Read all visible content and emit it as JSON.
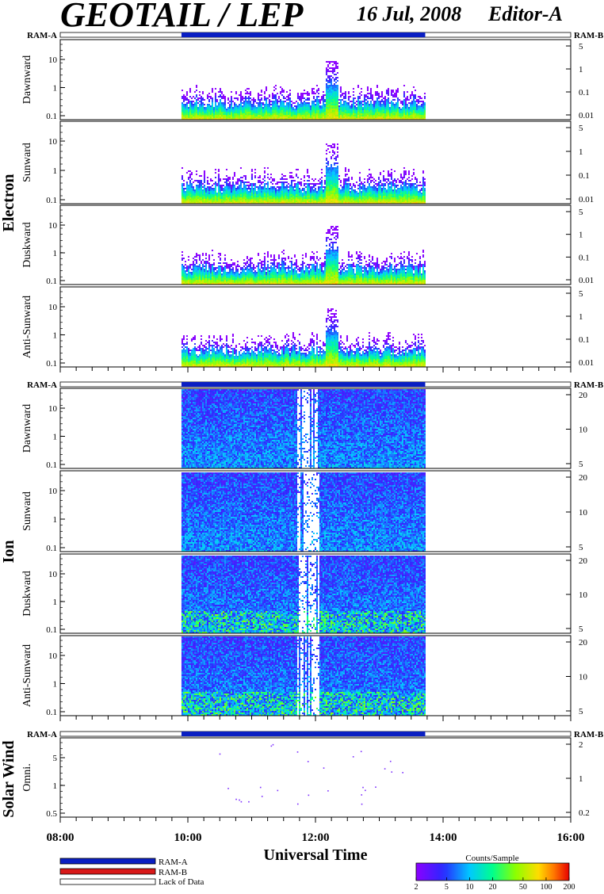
{
  "header": {
    "title": "GEOTAIL / LEP",
    "date": "16 Jul, 2008",
    "editor": "Editor-A"
  },
  "ram_labels": {
    "left": "RAM-A",
    "right": "RAM-B"
  },
  "groups": [
    {
      "name": "Electron"
    },
    {
      "name": "Ion"
    },
    {
      "name": "Solar Wind"
    }
  ],
  "legend": {
    "items": [
      {
        "label": "RAM-A",
        "color": "#0a1fc2"
      },
      {
        "label": "RAM-B",
        "color": "#d81818"
      },
      {
        "label": "Lack of Data",
        "color": "#ffffff"
      }
    ]
  },
  "colorbar": {
    "title": "Counts/Sample",
    "ticks": [
      "2",
      "5",
      "10",
      "20",
      "50",
      "100",
      "200"
    ],
    "min": 2,
    "max": 200,
    "scale": "log"
  },
  "chart_data": {
    "type": "heatmap",
    "xlabel": "Universal Time",
    "x_ticks": [
      "08:00",
      "10:00",
      "12:00",
      "14:00",
      "16:00"
    ],
    "x_range_hours": [
      8,
      16
    ],
    "data_coverage_hours": [
      9.9,
      13.72
    ],
    "panels": [
      {
        "group": "Electron",
        "ylabel": "Dawnward",
        "left_ticks": [
          "10",
          "1",
          "0.1"
        ],
        "right_ticks": [
          "5",
          "1",
          "0.1",
          "0.01"
        ],
        "yscale": "log"
      },
      {
        "group": "Electron",
        "ylabel": "Sunward",
        "left_ticks": [
          "10",
          "1",
          "0.1"
        ],
        "right_ticks": [
          "5",
          "1",
          "0.1",
          "0.01"
        ],
        "yscale": "log"
      },
      {
        "group": "Electron",
        "ylabel": "Duskward",
        "left_ticks": [
          "10",
          "1",
          "0.1"
        ],
        "right_ticks": [
          "5",
          "1",
          "0.1",
          "0.01"
        ],
        "yscale": "log"
      },
      {
        "group": "Electron",
        "ylabel": "Anti-Sunward",
        "left_ticks": [
          "10",
          "1",
          "0.1"
        ],
        "right_ticks": [
          "5",
          "1",
          "0.1",
          "0.01"
        ],
        "yscale": "log"
      },
      {
        "group": "Ion",
        "ylabel": "Dawnward",
        "left_ticks": [
          "10",
          "1",
          "0.1"
        ],
        "right_ticks": [
          "20",
          "10",
          "5"
        ],
        "yscale": "log"
      },
      {
        "group": "Ion",
        "ylabel": "Sunward",
        "left_ticks": [
          "10",
          "1",
          "0.1"
        ],
        "right_ticks": [
          "20",
          "10",
          "5"
        ],
        "yscale": "log"
      },
      {
        "group": "Ion",
        "ylabel": "Duskward",
        "left_ticks": [
          "10",
          "1",
          "0.1"
        ],
        "right_ticks": [
          "20",
          "10",
          "5"
        ],
        "yscale": "log"
      },
      {
        "group": "Ion",
        "ylabel": "Anti-Sunward",
        "left_ticks": [
          "10",
          "1",
          "0.1"
        ],
        "right_ticks": [
          "20",
          "10",
          "5"
        ],
        "yscale": "log"
      },
      {
        "group": "Solar Wind",
        "ylabel": "Omni.",
        "left_ticks": [
          "5",
          "1",
          "0.5"
        ],
        "right_ticks": [
          "2",
          "1",
          "0.2"
        ],
        "yscale": "log"
      }
    ]
  }
}
